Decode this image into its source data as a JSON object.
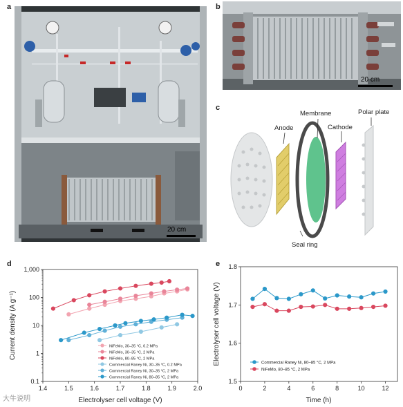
{
  "panels": {
    "a": {
      "label": "a",
      "scalebar": "20 cm"
    },
    "b": {
      "label": "b",
      "scalebar": "20 cm"
    },
    "c": {
      "label": "c",
      "annotations": {
        "membrane": "Membrane",
        "polar_plate": "Polar plate",
        "anode": "Anode",
        "cathode": "Cathode",
        "seal_ring": "Seal ring"
      }
    },
    "d": {
      "label": "d"
    },
    "e": {
      "label": "e"
    }
  },
  "watermark": "大牛说明",
  "colors": {
    "nifemo": "#d9475e",
    "nifemo_light": "#f2a4b0",
    "raney": "#2b98c9",
    "raney_light": "#90c8e3",
    "anode": "#d8c25a",
    "cathode": "#c56fd6",
    "membrane": "#5fc38d"
  },
  "chart_data": [
    {
      "type": "scatter",
      "xlabel": "Electrolyser cell voltage (V)",
      "ylabel": "Current density (A g⁻¹)",
      "xlim": [
        1.4,
        2.0
      ],
      "ylim": [
        0.1,
        1000
      ],
      "yscale": "log",
      "xticks": [
        "1.4",
        "1.5",
        "1.6",
        "1.7",
        "1.8",
        "1.9",
        "2.0"
      ],
      "yticks": [
        "0.1",
        "1",
        "10",
        "100",
        "1,000"
      ],
      "legend_position": "lower-right",
      "series": [
        {
          "name": "NiFeMo, 30–35 °C, 0.2 MPa",
          "color": "#f2a4b0",
          "x": [
            1.5,
            1.58,
            1.64,
            1.7,
            1.76,
            1.82,
            1.87,
            1.92,
            1.96
          ],
          "y": [
            25,
            40,
            55,
            75,
            90,
            110,
            140,
            165,
            195
          ]
        },
        {
          "name": "NiFeMo, 30–35 °C, 2 MPa",
          "color": "#e98599",
          "x": [
            1.58,
            1.64,
            1.7,
            1.76,
            1.82,
            1.87,
            1.92,
            1.96
          ],
          "y": [
            55,
            70,
            90,
            115,
            140,
            165,
            190,
            210
          ]
        },
        {
          "name": "NiFeMo, 80–85 °C, 2 MPa",
          "color": "#d9475e",
          "x": [
            1.44,
            1.52,
            1.58,
            1.64,
            1.7,
            1.76,
            1.82,
            1.86,
            1.89
          ],
          "y": [
            40,
            80,
            120,
            165,
            210,
            260,
            310,
            340,
            380
          ]
        },
        {
          "name": "Commercial Raney Ni, 30–35 °C, 0.2 MPa",
          "color": "#90c8e3",
          "x": [
            1.62,
            1.7,
            1.78,
            1.86,
            1.92
          ],
          "y": [
            3,
            4.5,
            6,
            8.5,
            11
          ]
        },
        {
          "name": "Commercial Raney Ni, 30–35 °C, 2 MPa",
          "color": "#5fb0d8",
          "x": [
            1.5,
            1.58,
            1.64,
            1.7,
            1.76,
            1.82,
            1.88,
            1.94
          ],
          "y": [
            3,
            4.5,
            6.5,
            9,
            11,
            13.5,
            16,
            19
          ]
        },
        {
          "name": "Commercial Raney Ni, 80–85 °C, 2 MPa",
          "color": "#2b98c9",
          "x": [
            1.47,
            1.56,
            1.62,
            1.68,
            1.72,
            1.78,
            1.83,
            1.88,
            1.94,
            1.98
          ],
          "y": [
            3,
            5.5,
            7.5,
            10,
            12,
            14.5,
            16.5,
            19,
            24,
            22
          ]
        }
      ]
    },
    {
      "type": "line",
      "xlabel": "Time (h)",
      "ylabel": "Electrolyser cell voltage (V)",
      "xlim": [
        0,
        13
      ],
      "ylim": [
        1.5,
        1.8
      ],
      "xticks": [
        "0",
        "2",
        "4",
        "6",
        "8",
        "10",
        "12"
      ],
      "yticks": [
        "1.5",
        "1.6",
        "1.7",
        "1.8"
      ],
      "legend_position": "lower-left",
      "series": [
        {
          "name": "Commercial Raney Ni, 80–85 °C, 2 MPa",
          "color": "#2b98c9",
          "x": [
            1,
            2,
            3,
            4,
            5,
            6,
            7,
            8,
            9,
            10,
            11,
            12
          ],
          "y": [
            1.716,
            1.742,
            1.718,
            1.716,
            1.728,
            1.738,
            1.717,
            1.725,
            1.722,
            1.72,
            1.73,
            1.735
          ]
        },
        {
          "name": "NiFeMo, 80–85 °C, 2 MPa",
          "color": "#d9475e",
          "x": [
            1,
            2,
            3,
            4,
            5,
            6,
            7,
            8,
            9,
            10,
            11,
            12
          ],
          "y": [
            1.695,
            1.702,
            1.685,
            1.685,
            1.695,
            1.696,
            1.7,
            1.69,
            1.69,
            1.692,
            1.695,
            1.698
          ]
        }
      ]
    }
  ]
}
